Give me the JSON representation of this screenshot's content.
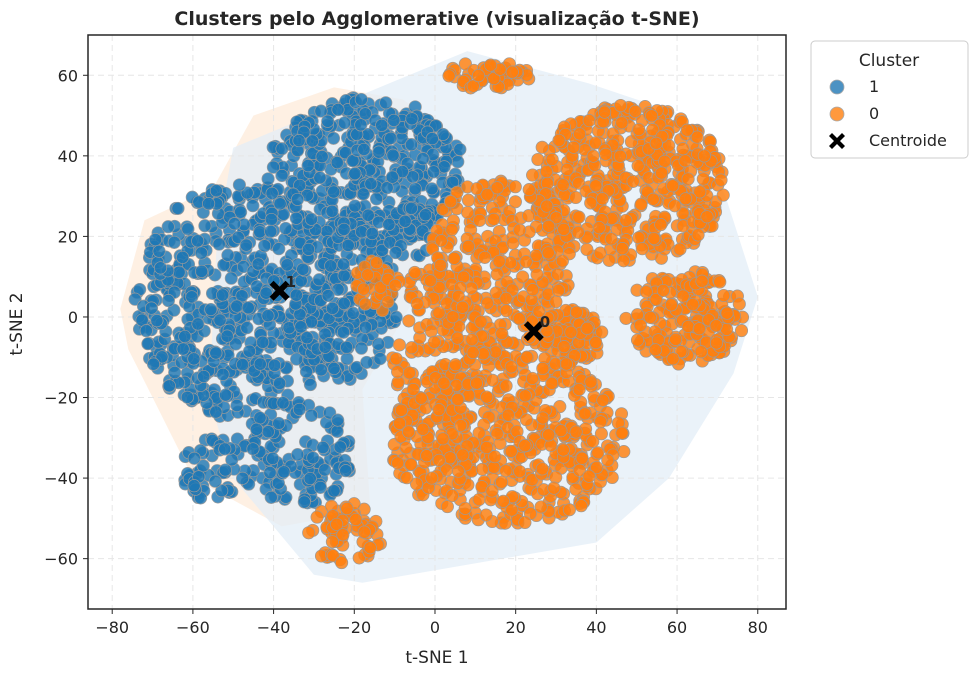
{
  "chart_data": {
    "type": "scatter",
    "title": "Clusters pelo Agglomerative (visualização t-SNE)",
    "xlabel": "t-SNE 1",
    "ylabel": "t-SNE 2",
    "xlim": [
      -86,
      87
    ],
    "ylim": [
      -72.5,
      70
    ],
    "xticks": [
      -80,
      -60,
      -40,
      -20,
      0,
      20,
      40,
      60,
      80
    ],
    "yticks": [
      -60,
      -40,
      -20,
      0,
      20,
      40,
      60
    ],
    "xtick_labels": [
      "−80",
      "−60",
      "−40",
      "−20",
      "0",
      "20",
      "40",
      "60",
      "80"
    ],
    "ytick_labels": [
      "−60",
      "−40",
      "−20",
      "0",
      "20",
      "40",
      "60"
    ],
    "grid": true,
    "legend": {
      "title": "Cluster",
      "placement": "outside-top-right",
      "entries": [
        {
          "label": "1",
          "marker": "circle",
          "color": "#1f77b4"
        },
        {
          "label": "0",
          "marker": "circle",
          "color": "#ff7f0e"
        },
        {
          "label": "Centroide",
          "marker": "x",
          "color": "#000000"
        }
      ]
    },
    "series": [
      {
        "name": "1",
        "color": "#1f77b4",
        "regions": [
          {
            "x": -48,
            "y": 4,
            "rx": 27,
            "ry": 30,
            "n": 620
          },
          {
            "x": -17,
            "y": 36,
            "rx": 25,
            "ry": 19,
            "n": 430
          },
          {
            "x": -22,
            "y": 4,
            "rx": 13,
            "ry": 20,
            "n": 170
          },
          {
            "x": -35,
            "y": -34,
            "rx": 15,
            "ry": 14,
            "n": 140
          },
          {
            "x": -55,
            "y": -38,
            "rx": 8,
            "ry": 8,
            "n": 50
          },
          {
            "x": -6,
            "y": 22,
            "rx": 6,
            "ry": 8,
            "n": 40
          }
        ],
        "hull": [
          [
            -78,
            2
          ],
          [
            -72,
            24
          ],
          [
            -55,
            32
          ],
          [
            -45,
            50
          ],
          [
            -25,
            57
          ],
          [
            -8,
            54
          ],
          [
            6,
            44
          ],
          [
            -2,
            10
          ],
          [
            -18,
            -18
          ],
          [
            -16,
            -48
          ],
          [
            -38,
            -52
          ],
          [
            -60,
            -40
          ],
          [
            -70,
            -20
          ],
          [
            -76,
            -8
          ]
        ]
      },
      {
        "name": "0",
        "color": "#ff7f0e",
        "regions": [
          {
            "x": 48,
            "y": 33,
            "rx": 25,
            "ry": 20,
            "n": 500
          },
          {
            "x": 62,
            "y": 0,
            "rx": 15,
            "ry": 12,
            "n": 200
          },
          {
            "x": 34,
            "y": -5,
            "rx": 8,
            "ry": 7,
            "n": 90
          },
          {
            "x": 16,
            "y": 12,
            "rx": 18,
            "ry": 25,
            "n": 330
          },
          {
            "x": 18,
            "y": -30,
            "rx": 30,
            "ry": 22,
            "n": 520
          },
          {
            "x": 1,
            "y": -14,
            "rx": 12,
            "ry": 30,
            "n": 170
          },
          {
            "x": -22,
            "y": -54,
            "rx": 10,
            "ry": 8,
            "n": 70
          },
          {
            "x": 13,
            "y": 60,
            "rx": 11,
            "ry": 3.5,
            "n": 55
          },
          {
            "x": -14,
            "y": 8,
            "rx": 6,
            "ry": 7,
            "n": 40
          }
        ],
        "hull": [
          [
            -50,
            42
          ],
          [
            8,
            66
          ],
          [
            38,
            58
          ],
          [
            62,
            50
          ],
          [
            72,
            30
          ],
          [
            80,
            5
          ],
          [
            74,
            -14
          ],
          [
            58,
            -40
          ],
          [
            40,
            -56
          ],
          [
            -18,
            -66
          ],
          [
            -30,
            -64
          ],
          [
            -50,
            -40
          ],
          [
            -56,
            -20
          ],
          [
            -54,
            20
          ]
        ]
      }
    ],
    "centroids": [
      {
        "label": "1",
        "x": -38.5,
        "y": 6.5
      },
      {
        "label": "0",
        "x": 24.5,
        "y": -3.5
      }
    ]
  }
}
